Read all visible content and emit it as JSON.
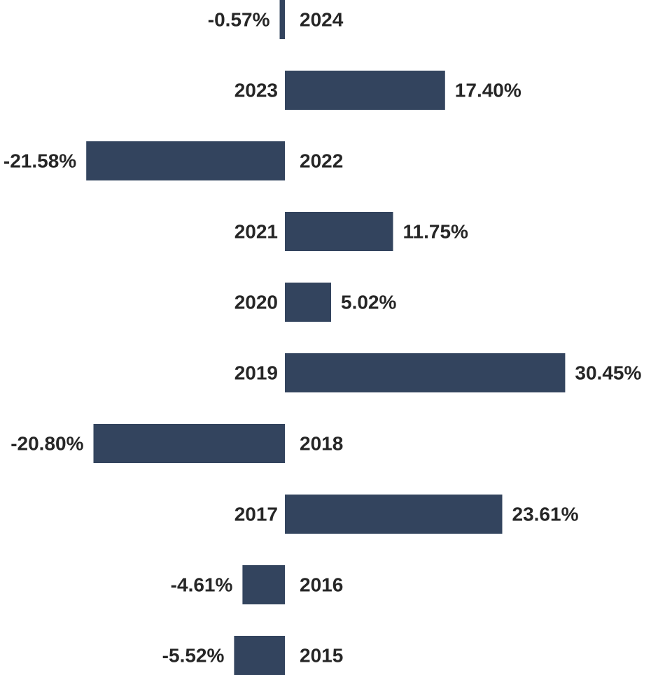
{
  "chart_data": {
    "type": "bar",
    "orientation": "horizontal",
    "title": "",
    "xlabel": "",
    "ylabel": "",
    "categories": [
      "2024",
      "2023",
      "2022",
      "2021",
      "2020",
      "2019",
      "2018",
      "2017",
      "2016",
      "2015"
    ],
    "values": [
      -0.57,
      17.4,
      -21.58,
      11.75,
      5.02,
      30.45,
      -20.8,
      23.61,
      -4.61,
      -5.52
    ],
    "value_labels": [
      "-0.57%",
      "17.40%",
      "-21.58%",
      "11.75%",
      "5.02%",
      "30.45%",
      "-20.80%",
      "23.61%",
      "-4.61%",
      "-5.52%"
    ],
    "bar_color": "#33445e",
    "label_color": "#262626",
    "grid": false,
    "legend": "none"
  }
}
